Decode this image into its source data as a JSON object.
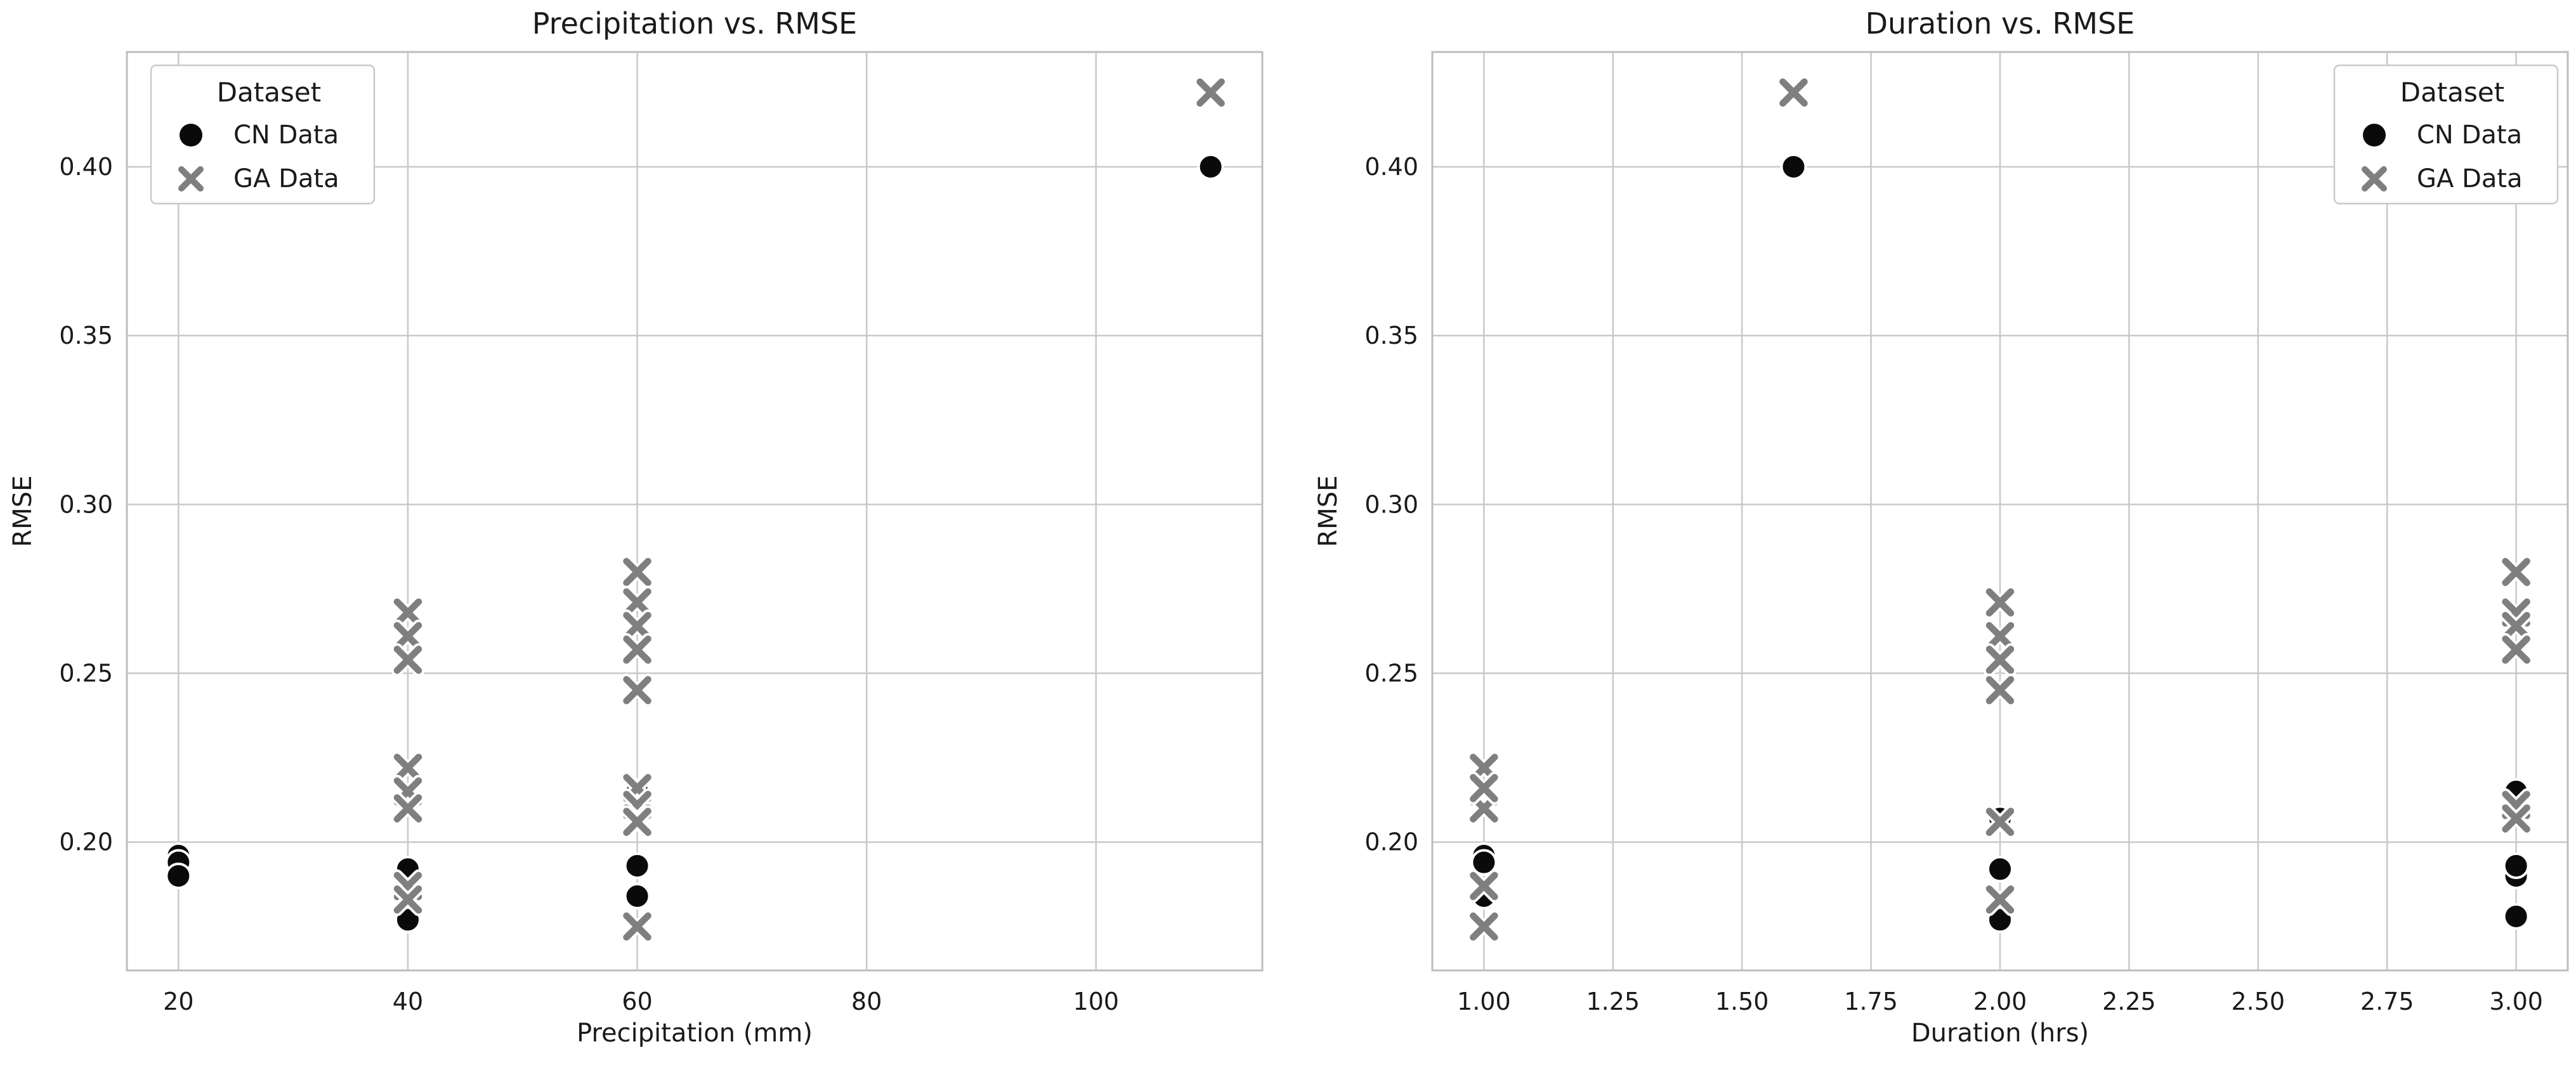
{
  "figure": {
    "background_color": "#ffffff",
    "text_color": "#1a1a1a",
    "grid_color": "#c9c9c9",
    "spine_color": "#bdbdbd",
    "cn_color": "#0a0a0a",
    "ga_color": "#7f7f7f",
    "marker_edge_color": "#ffffff"
  },
  "chart_data": [
    {
      "type": "scatter",
      "title": "Precipitation vs. RMSE",
      "xlabel": "Precipitation (mm)",
      "ylabel": "RMSE",
      "xlim": [
        15.5,
        114.5
      ],
      "ylim": [
        0.162,
        0.434
      ],
      "grid": true,
      "xticks": {
        "values": [
          20,
          40,
          60,
          80,
          100
        ],
        "labels": [
          "20",
          "40",
          "60",
          "80",
          "100"
        ]
      },
      "yticks": {
        "values": [
          0.2,
          0.25,
          0.3,
          0.35,
          0.4
        ],
        "labels": [
          "0.20",
          "0.25",
          "0.30",
          "0.35",
          "0.40"
        ]
      },
      "legend": {
        "title": "Dataset",
        "location": "upper left",
        "entries": [
          {
            "label": "CN Data",
            "marker": "circle",
            "color": "#0a0a0a"
          },
          {
            "label": "GA Data",
            "marker": "x",
            "color": "#7f7f7f"
          }
        ]
      },
      "series": [
        {
          "name": "CN Data",
          "marker": "circle",
          "color": "#0a0a0a",
          "points": [
            [
              20,
              0.196
            ],
            [
              20,
              0.194
            ],
            [
              20,
              0.19
            ],
            [
              40,
              0.192
            ],
            [
              40,
              0.178
            ],
            [
              40,
              0.177
            ],
            [
              60,
              0.215
            ],
            [
              60,
              0.207
            ],
            [
              60,
              0.193
            ],
            [
              60,
              0.184
            ],
            [
              110,
              0.4
            ]
          ]
        },
        {
          "name": "GA Data",
          "marker": "x",
          "color": "#7f7f7f",
          "points": [
            [
              40,
              0.268
            ],
            [
              40,
              0.261
            ],
            [
              40,
              0.254
            ],
            [
              40,
              0.222
            ],
            [
              40,
              0.215
            ],
            [
              40,
              0.21
            ],
            [
              40,
              0.187
            ],
            [
              40,
              0.183
            ],
            [
              60,
              0.28
            ],
            [
              60,
              0.271
            ],
            [
              60,
              0.264
            ],
            [
              60,
              0.257
            ],
            [
              60,
              0.245
            ],
            [
              60,
              0.216
            ],
            [
              60,
              0.211
            ],
            [
              60,
              0.207
            ],
            [
              60,
              0.206
            ],
            [
              60,
              0.175
            ],
            [
              110,
              0.422
            ]
          ]
        }
      ]
    },
    {
      "type": "scatter",
      "title": "Duration vs. RMSE",
      "xlabel": "Duration (hrs)",
      "ylabel": "RMSE",
      "xlim": [
        0.9,
        3.1
      ],
      "ylim": [
        0.162,
        0.434
      ],
      "grid": true,
      "xticks": {
        "values": [
          1.0,
          1.25,
          1.5,
          1.75,
          2.0,
          2.25,
          2.5,
          2.75,
          3.0
        ],
        "labels": [
          "1.00",
          "1.25",
          "1.50",
          "1.75",
          "2.00",
          "2.25",
          "2.50",
          "2.75",
          "3.00"
        ]
      },
      "yticks": {
        "values": [
          0.2,
          0.25,
          0.3,
          0.35,
          0.4
        ],
        "labels": [
          "0.20",
          "0.25",
          "0.30",
          "0.35",
          "0.40"
        ]
      },
      "legend": {
        "title": "Dataset",
        "location": "upper right",
        "entries": [
          {
            "label": "CN Data",
            "marker": "circle",
            "color": "#0a0a0a"
          },
          {
            "label": "GA Data",
            "marker": "x",
            "color": "#7f7f7f"
          }
        ]
      },
      "series": [
        {
          "name": "CN Data",
          "marker": "circle",
          "color": "#0a0a0a",
          "points": [
            [
              1.0,
              0.196
            ],
            [
              1.0,
              0.194
            ],
            [
              3.0,
              0.19
            ],
            [
              2.0,
              0.192
            ],
            [
              3.0,
              0.178
            ],
            [
              2.0,
              0.177
            ],
            [
              3.0,
              0.215
            ],
            [
              2.0,
              0.207
            ],
            [
              3.0,
              0.193
            ],
            [
              1.0,
              0.184
            ],
            [
              1.6,
              0.4
            ]
          ]
        },
        {
          "name": "GA Data",
          "marker": "x",
          "color": "#7f7f7f",
          "points": [
            [
              1.0,
              0.222
            ],
            [
              1.0,
              0.215
            ],
            [
              1.0,
              0.21
            ],
            [
              2.0,
              0.261
            ],
            [
              2.0,
              0.254
            ],
            [
              3.0,
              0.268
            ],
            [
              1.0,
              0.187
            ],
            [
              2.0,
              0.183
            ],
            [
              3.0,
              0.28
            ],
            [
              2.0,
              0.271
            ],
            [
              3.0,
              0.264
            ],
            [
              3.0,
              0.257
            ],
            [
              2.0,
              0.245
            ],
            [
              1.0,
              0.216
            ],
            [
              3.0,
              0.211
            ],
            [
              3.0,
              0.207
            ],
            [
              2.0,
              0.206
            ],
            [
              1.0,
              0.175
            ],
            [
              1.6,
              0.422
            ]
          ]
        }
      ]
    }
  ]
}
